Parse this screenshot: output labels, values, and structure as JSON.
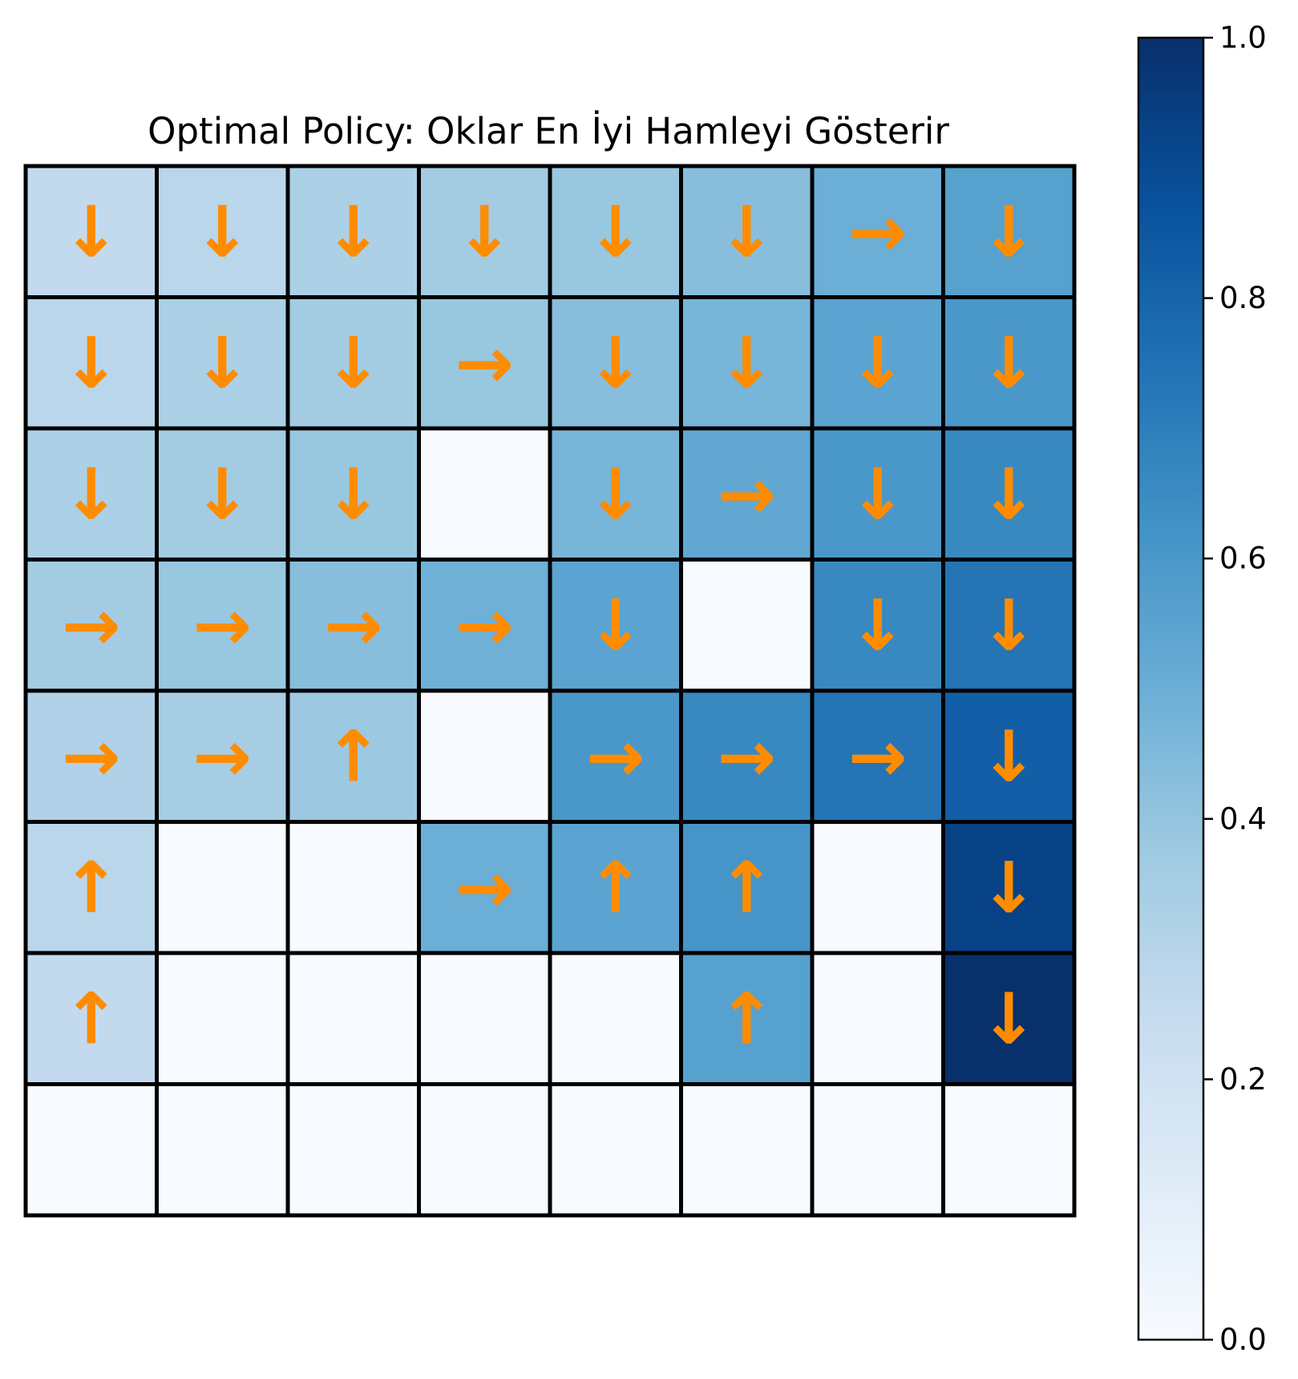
{
  "chart_data": {
    "type": "heatmap",
    "title": "Optimal Policy: Oklar En İyi Hamleyi Gösterir",
    "rows": 8,
    "cols": 8,
    "values": [
      [
        0.26,
        0.29,
        0.33,
        0.36,
        0.39,
        0.43,
        0.5,
        0.56
      ],
      [
        0.29,
        0.33,
        0.36,
        0.39,
        0.43,
        0.47,
        0.55,
        0.6
      ],
      [
        0.33,
        0.36,
        0.39,
        0.0,
        0.47,
        0.53,
        0.6,
        0.66
      ],
      [
        0.36,
        0.39,
        0.43,
        0.49,
        0.55,
        0.0,
        0.66,
        0.74
      ],
      [
        0.32,
        0.35,
        0.38,
        0.0,
        0.6,
        0.66,
        0.74,
        0.82
      ],
      [
        0.29,
        0.0,
        0.0,
        0.5,
        0.55,
        0.61,
        0.0,
        0.93
      ],
      [
        0.26,
        0.0,
        0.0,
        0.0,
        0.0,
        0.56,
        0.0,
        1.0
      ],
      [
        0.0,
        0.0,
        0.0,
        0.0,
        0.0,
        0.0,
        0.0,
        0.0
      ]
    ],
    "policy": [
      [
        "↓",
        "↓",
        "↓",
        "↓",
        "↓",
        "↓",
        "→",
        "↓"
      ],
      [
        "↓",
        "↓",
        "↓",
        "→",
        "↓",
        "↓",
        "↓",
        "↓"
      ],
      [
        "↓",
        "↓",
        "↓",
        "",
        "↓",
        "→",
        "↓",
        "↓"
      ],
      [
        "→",
        "→",
        "→",
        "→",
        "↓",
        "",
        "↓",
        "↓"
      ],
      [
        "→",
        "→",
        "↑",
        "",
        "→",
        "→",
        "→",
        "↓"
      ],
      [
        "↑",
        "",
        "",
        "→",
        "↑",
        "↑",
        "",
        "↓"
      ],
      [
        "↑",
        "",
        "",
        "",
        "",
        "↑",
        "",
        "↓"
      ],
      [
        "",
        "",
        "",
        "",
        "",
        "",
        "",
        ""
      ]
    ],
    "colorbar": {
      "range": [
        0.0,
        1.0
      ],
      "ticks": [
        "0.0",
        "0.2",
        "0.4",
        "0.6",
        "0.8",
        "1.0"
      ],
      "colormap": "Blues"
    },
    "colors": {
      "arrow": "#ff8c00",
      "cell_border": "#000000"
    },
    "grid": true,
    "legend": "colorbar-right"
  }
}
